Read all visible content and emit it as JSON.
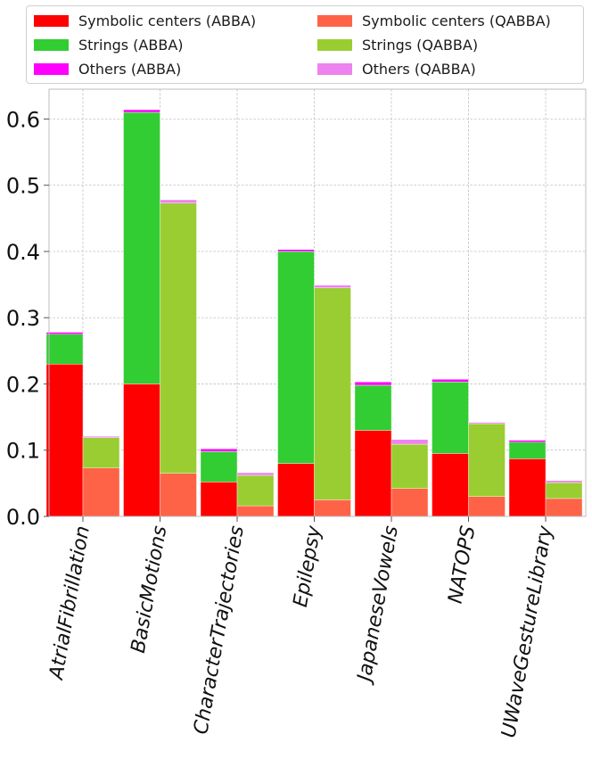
{
  "chart_data": {
    "type": "bar",
    "stacked": true,
    "grouped": true,
    "categories": [
      "AtrialFibrillation",
      "BasicMotions",
      "CharacterTrajectories",
      "Epilepsy",
      "JapaneseVowels",
      "NATOPS",
      "UWaveGestureLibrary"
    ],
    "groups": [
      {
        "name": "ABBA",
        "series": [
          {
            "name": "Symbolic centers (ABBA)",
            "color": "#ff0000",
            "values": [
              0.23,
              0.2,
              0.052,
              0.08,
              0.13,
              0.095,
              0.087
            ]
          },
          {
            "name": "Strings (ABBA)",
            "color": "#32cd32",
            "values": [
              0.045,
              0.41,
              0.046,
              0.32,
              0.068,
              0.108,
              0.025
            ]
          },
          {
            "name": "Others (ABBA)",
            "color": "#ff00ff",
            "values": [
              0.003,
              0.004,
              0.004,
              0.003,
              0.005,
              0.004,
              0.003
            ]
          }
        ]
      },
      {
        "name": "QABBA",
        "series": [
          {
            "name": "Symbolic centers (QABBA)",
            "color": "#ff6347",
            "values": [
              0.073,
              0.065,
              0.016,
              0.025,
              0.042,
              0.03,
              0.027
            ]
          },
          {
            "name": "Strings (QABBA)",
            "color": "#9acd32",
            "values": [
              0.046,
              0.408,
              0.046,
              0.32,
              0.067,
              0.11,
              0.024
            ]
          },
          {
            "name": "Others (QABBA)",
            "color": "#ee82ee",
            "values": [
              0.002,
              0.005,
              0.004,
              0.004,
              0.007,
              0.002,
              0.003
            ]
          }
        ]
      }
    ],
    "ylim": [
      0,
      0.645
    ],
    "yticks": [
      0.0,
      0.1,
      0.2,
      0.3,
      0.4,
      0.5,
      0.6
    ],
    "ytick_labels": [
      "0.0",
      "0.1",
      "0.2",
      "0.3",
      "0.4",
      "0.5",
      "0.6"
    ],
    "grid": true,
    "legend_position": "top"
  },
  "legend": {
    "items": [
      {
        "label": "Symbolic centers (ABBA)",
        "color": "#ff0000"
      },
      {
        "label": "Symbolic centers (QABBA)",
        "color": "#ff6347"
      },
      {
        "label": "Strings (ABBA)",
        "color": "#32cd32"
      },
      {
        "label": "Strings (QABBA)",
        "color": "#9acd32"
      },
      {
        "label": "Others (ABBA)",
        "color": "#ff00ff"
      },
      {
        "label": "Others (QABBA)",
        "color": "#ee82ee"
      }
    ]
  }
}
